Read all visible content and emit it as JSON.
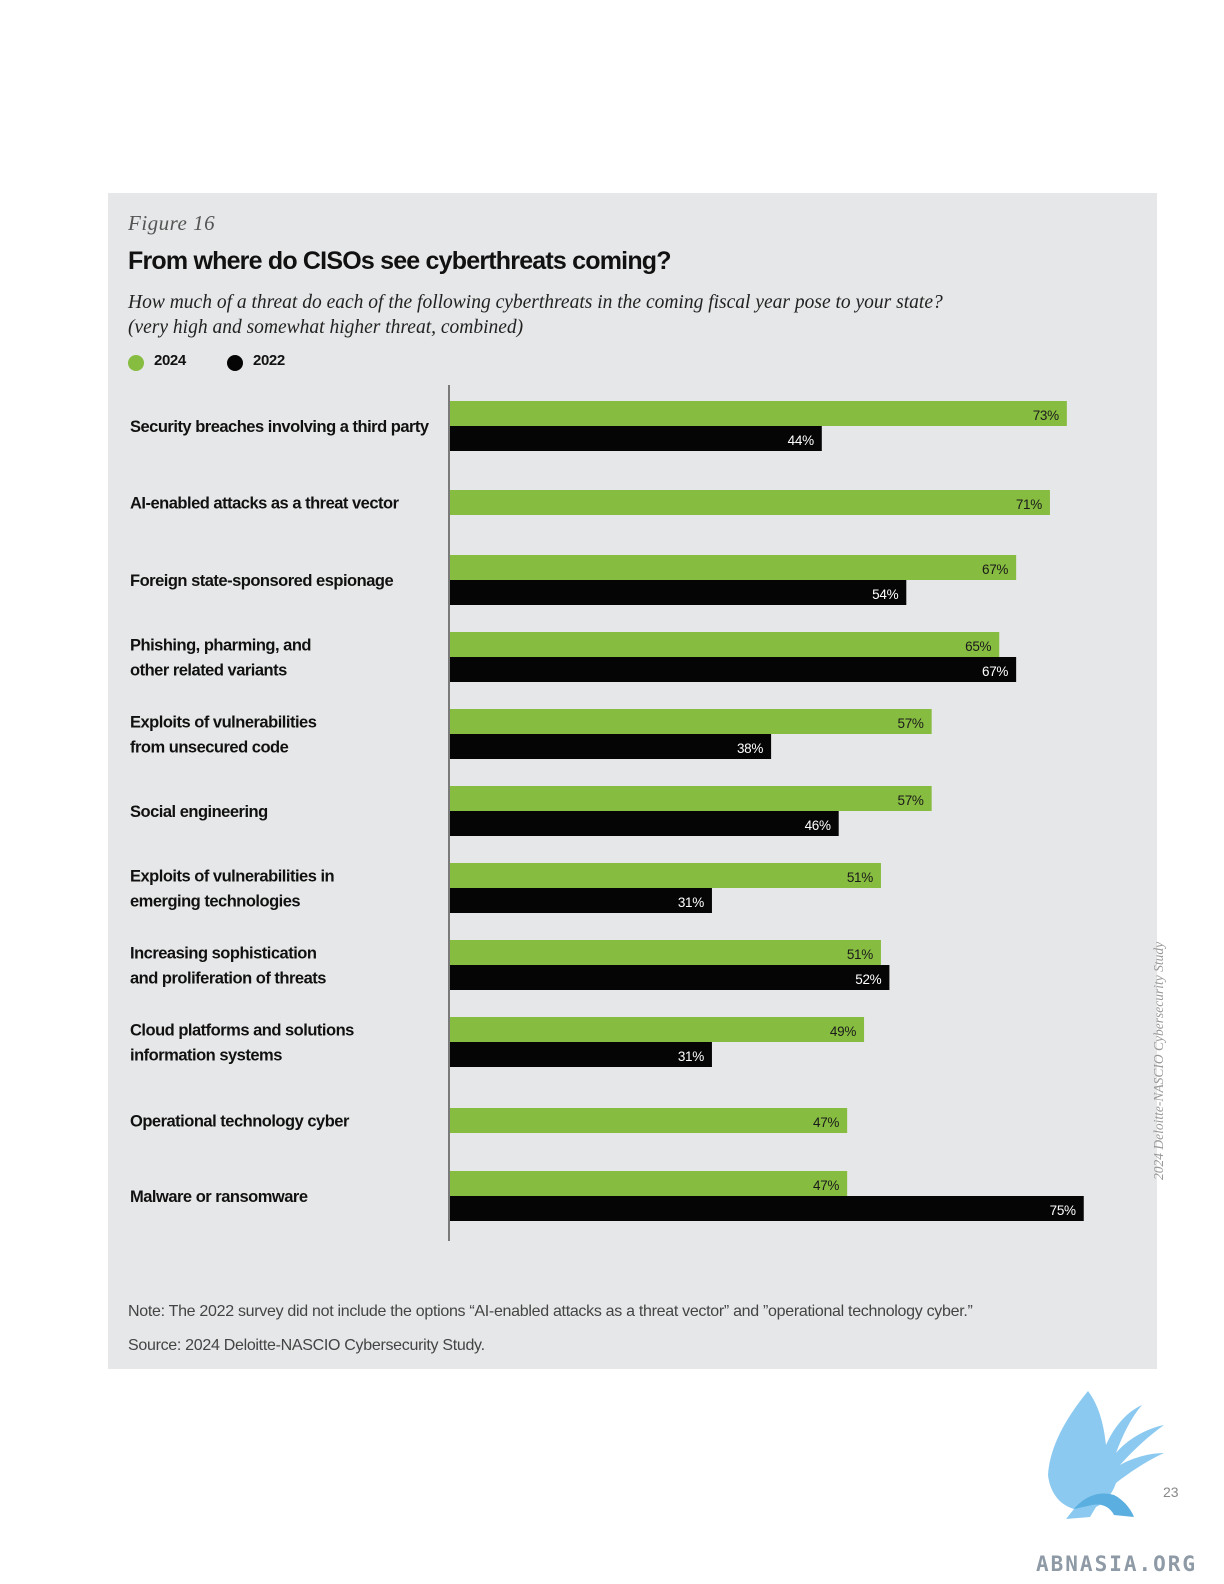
{
  "figure_label": "Figure 16",
  "page_number": "23",
  "side_text": "2024 Deloitte-NASCIO Cybersecurity Study",
  "watermark_text": "ABNASIA.ORG",
  "colors": {
    "series_2024": "#86bc40",
    "series_2022": "#050505",
    "panel_bg": "#e6e7e8"
  },
  "legend": [
    {
      "name": "2024",
      "color": "#86bc40"
    },
    {
      "name": "2022",
      "color": "#050505"
    }
  ],
  "chart_data": {
    "type": "bar",
    "orientation": "horizontal",
    "title": "From where do CISOs see cyberthreats coming?",
    "subtitle": "How much of a threat do each of the following cyberthreats in the coming fiscal year pose to your state? (very high and somewhat higher threat, combined)",
    "subtitle_lines": [
      "How much of a threat do each of the following cyberthreats in the coming fiscal year pose to your state?",
      "(very high and somewhat higher threat, combined)"
    ],
    "unit": "%",
    "xlim": [
      0,
      100
    ],
    "grid": false,
    "legend_position": "top-left",
    "categories": [
      [
        "Security breaches involving a third party"
      ],
      [
        "AI-enabled attacks as a threat vector"
      ],
      [
        "Foreign state-sponsored espionage"
      ],
      [
        "Phishing, pharming, and",
        "other related variants"
      ],
      [
        "Exploits of vulnerabilities",
        "from unsecured code"
      ],
      [
        "Social engineering"
      ],
      [
        "Exploits of vulnerabilities in",
        "emerging technologies"
      ],
      [
        "Increasing sophistication",
        "and proliferation of threats"
      ],
      [
        "Cloud platforms and solutions",
        "information systems"
      ],
      [
        "Operational technology cyber"
      ],
      [
        "Malware or ransomware"
      ]
    ],
    "series": [
      {
        "name": "2024",
        "values": [
          73,
          71,
          67,
          65,
          57,
          57,
          51,
          51,
          49,
          47,
          47
        ]
      },
      {
        "name": "2022",
        "values": [
          44,
          null,
          54,
          67,
          38,
          46,
          31,
          52,
          31,
          null,
          75
        ]
      }
    ],
    "note": "Note: The 2022 survey did not include the options “AI-enabled attacks as a threat vector” and ”operational technology cyber.”",
    "source": "Source: 2024 Deloitte-NASCIO Cybersecurity Study."
  }
}
